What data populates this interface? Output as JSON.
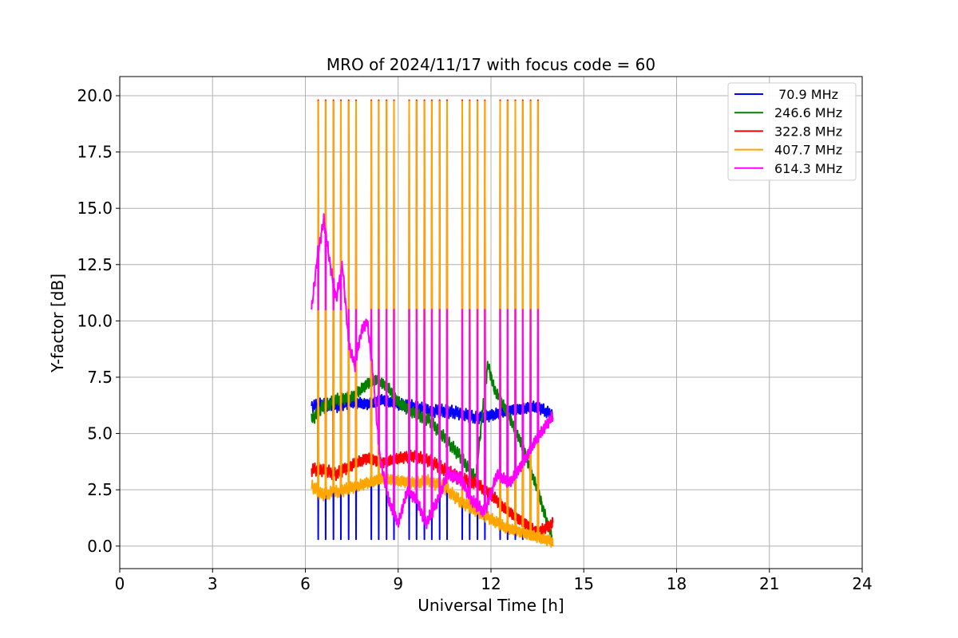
{
  "chart_data": {
    "type": "line",
    "title": "MRO of 2024/11/17 with focus code = 60",
    "xlabel": "Universal Time [h]",
    "ylabel": "Y-factor [dB]",
    "xlim": [
      0,
      24
    ],
    "ylim": [
      -1.0,
      20.85
    ],
    "xticks": [
      0,
      3,
      6,
      9,
      12,
      15,
      18,
      21,
      24
    ],
    "xtick_labels": [
      "0",
      "3",
      "6",
      "9",
      "12",
      "15",
      "18",
      "21",
      "24"
    ],
    "yticks": [
      0.0,
      2.5,
      5.0,
      7.5,
      10.0,
      12.5,
      15.0,
      17.5,
      20.0
    ],
    "ytick_labels": [
      "0.0",
      "2.5",
      "5.0",
      "7.5",
      "10.0",
      "12.5",
      "15.0",
      "17.5",
      "20.0"
    ],
    "grid": true,
    "legend_position": "top-right",
    "series": [
      {
        "name": " 70.9 MHz",
        "color": "#0000ff",
        "x": [
          6.2,
          6.6,
          7.0,
          7.5,
          8.0,
          8.5,
          9.0,
          9.5,
          10.0,
          10.5,
          11.0,
          11.5,
          12.0,
          12.5,
          13.0,
          13.5,
          14.0
        ],
        "y": [
          6.2,
          6.3,
          6.2,
          6.4,
          6.3,
          6.5,
          6.3,
          6.2,
          6.0,
          6.0,
          5.9,
          5.7,
          5.8,
          6.0,
          6.1,
          6.2,
          5.8
        ],
        "spikes_to": 0.3,
        "spike_period": 0.245
      },
      {
        "name": "246.6 MHz",
        "color": "#008000",
        "x": [
          6.2,
          6.5,
          7.0,
          7.5,
          8.0,
          8.3,
          8.7,
          9.0,
          9.5,
          10.0,
          10.5,
          11.0,
          11.5,
          11.9,
          12.1,
          12.5,
          13.0,
          13.5,
          14.0
        ],
        "y": [
          5.6,
          6.1,
          6.5,
          6.6,
          7.2,
          7.4,
          7.0,
          6.4,
          5.9,
          5.6,
          4.8,
          4.0,
          3.0,
          8.1,
          7.0,
          6.0,
          4.5,
          2.5,
          0.2
        ],
        "spikes_to": null,
        "spike_period": null
      },
      {
        "name": "322.8 MHz",
        "color": "#ff0000",
        "x": [
          6.2,
          6.5,
          7.0,
          7.5,
          8.0,
          8.5,
          9.0,
          9.5,
          10.0,
          10.5,
          11.0,
          11.5,
          12.0,
          12.5,
          13.0,
          13.5,
          14.0
        ],
        "y": [
          3.4,
          3.4,
          3.2,
          3.6,
          3.9,
          3.7,
          3.9,
          4.0,
          3.8,
          3.4,
          3.0,
          2.8,
          2.3,
          1.6,
          1.1,
          0.6,
          1.0
        ],
        "spikes_to": 19.8,
        "spike_period": 0.245
      },
      {
        "name": "407.7 MHz",
        "color": "#ffa500",
        "x": [
          6.2,
          6.5,
          7.0,
          7.5,
          8.0,
          8.5,
          9.0,
          9.5,
          10.0,
          10.5,
          11.0,
          11.5,
          12.0,
          12.5,
          13.0,
          13.5,
          14.0
        ],
        "y": [
          2.7,
          2.3,
          2.4,
          2.6,
          2.8,
          3.0,
          2.9,
          2.8,
          2.9,
          2.6,
          2.0,
          1.6,
          1.2,
          0.8,
          0.6,
          0.4,
          0.2
        ],
        "spikes_to": 19.75,
        "spike_period": 0.245
      },
      {
        "name": "614.3 MHz",
        "color": "#ff00ff",
        "x": [
          6.2,
          6.4,
          6.6,
          6.8,
          7.0,
          7.2,
          7.4,
          7.6,
          7.8,
          8.0,
          8.2,
          8.4,
          8.7,
          9.0,
          9.3,
          9.6,
          9.9,
          10.2,
          10.6,
          11.0,
          11.4,
          11.8,
          12.2,
          12.6,
          13.0,
          13.4,
          13.8,
          14.0
        ],
        "y": [
          10.5,
          13.0,
          14.5,
          12.5,
          11.0,
          12.5,
          9.0,
          8.0,
          9.5,
          10.0,
          7.5,
          4.0,
          2.0,
          1.0,
          2.5,
          2.0,
          1.0,
          1.8,
          3.2,
          3.0,
          2.0,
          1.5,
          3.2,
          2.8,
          3.6,
          4.6,
          5.4,
          5.8
        ],
        "spikes_to": 10.5,
        "spike_period": 0.245
      }
    ]
  }
}
